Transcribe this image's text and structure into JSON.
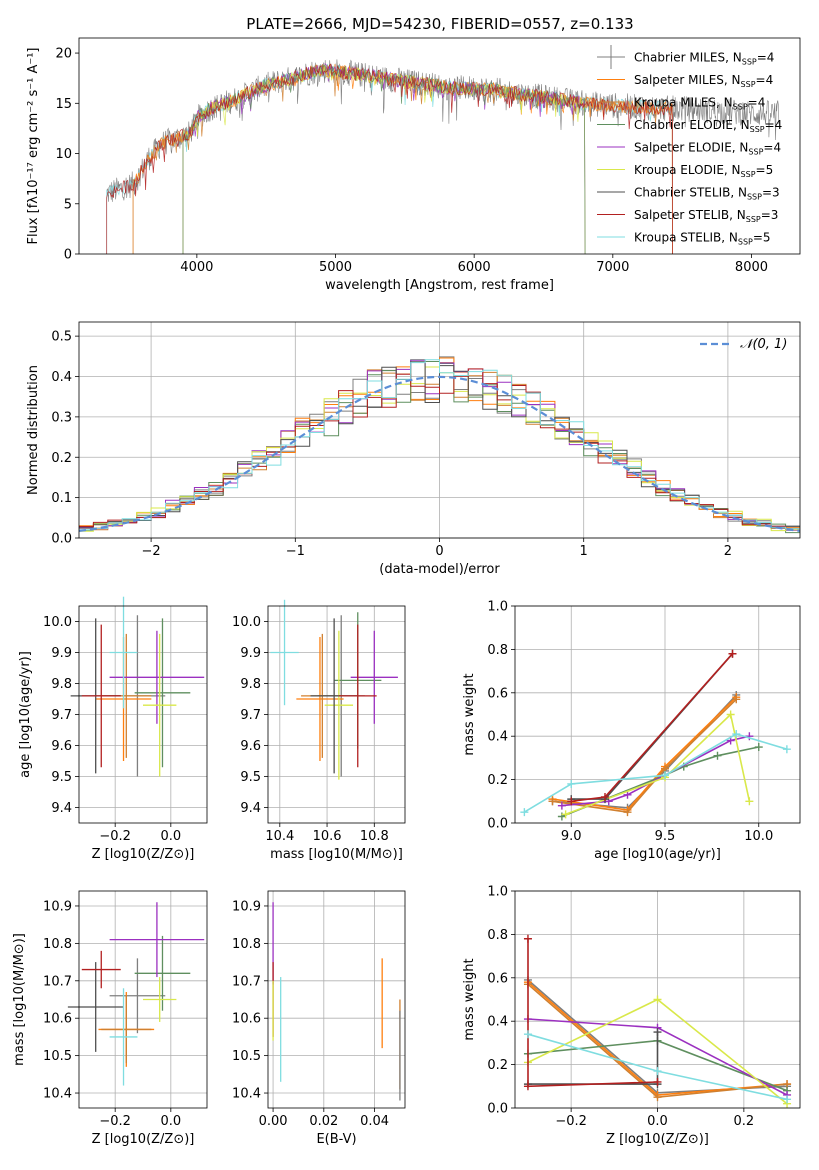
{
  "figure_title": "PLATE=2666, MJD=54230, FIBERID=0557, z=0.133",
  "colors": {
    "Chabrier MILES": "#7f7f7f",
    "Salpeter MILES": "#ff7f0e",
    "Kroupa MILES": "#d08030",
    "Chabrier ELODIE": "#5f8f5f",
    "Salpeter ELODIE": "#9b30c0",
    "Kroupa ELODIE": "#d9e84a",
    "Chabrier STELIB": "#4f4f4f",
    "Salpeter STELIB": "#b22020",
    "Kroupa STELIB": "#7fdde0",
    "gauss": "#5b8ed6"
  },
  "chart_data": [
    {
      "type": "line",
      "panel": "spectrum",
      "xlabel": "wavelength [Angstrom, rest frame]",
      "ylabel": "Flux [fλ10⁻¹⁷ erg cm⁻² s⁻¹ A⁻¹]",
      "xlim": [
        3150,
        8350
      ],
      "ylim": [
        0,
        21.5
      ],
      "xticks": [
        4000,
        5000,
        6000,
        7000,
        8000
      ],
      "yticks": [
        0,
        5,
        10,
        15,
        20
      ],
      "grid": false,
      "legend_position": "right",
      "legend": [
        {
          "name": "Chabrier MILES, N_SSP=4",
          "color": "#7f7f7f"
        },
        {
          "name": "Salpeter MILES, N_SSP=4",
          "color": "#ff7f0e"
        },
        {
          "name": "Kroupa MILES, N_SSP=4",
          "color": "#d08030"
        },
        {
          "name": "Chabrier ELODIE, N_SSP=4",
          "color": "#5f8f5f"
        },
        {
          "name": "Salpeter ELODIE, N_SSP=4",
          "color": "#9b30c0"
        },
        {
          "name": "Kroupa ELODIE, N_SSP=5",
          "color": "#d9e84a"
        },
        {
          "name": "Chabrier STELIB, N_SSP=3",
          "color": "#4f4f4f"
        },
        {
          "name": "Salpeter STELIB, N_SSP=3",
          "color": "#b22020"
        },
        {
          "name": "Kroupa STELIB, N_SSP=5",
          "color": "#7fdde0"
        }
      ],
      "continuum": [
        [
          3350,
          6.0
        ],
        [
          3450,
          6.5
        ],
        [
          3550,
          7.0
        ],
        [
          3650,
          9.5
        ],
        [
          3750,
          11.0
        ],
        [
          3850,
          11.5
        ],
        [
          3950,
          12.0
        ],
        [
          4000,
          13.5
        ],
        [
          4100,
          14.5
        ],
        [
          4200,
          15.0
        ],
        [
          4300,
          15.5
        ],
        [
          4400,
          16.2
        ],
        [
          4500,
          16.8
        ],
        [
          4600,
          17.2
        ],
        [
          4700,
          17.5
        ],
        [
          4800,
          18.0
        ],
        [
          4900,
          18.3
        ],
        [
          5000,
          18.2
        ],
        [
          5100,
          18.0
        ],
        [
          5200,
          17.8
        ],
        [
          5300,
          17.6
        ],
        [
          5400,
          17.4
        ],
        [
          5500,
          17.2
        ],
        [
          5600,
          17.0
        ],
        [
          5700,
          16.8
        ],
        [
          5800,
          16.6
        ],
        [
          5900,
          16.5
        ],
        [
          6000,
          16.5
        ],
        [
          6100,
          16.4
        ],
        [
          6200,
          16.2
        ],
        [
          6300,
          16.0
        ],
        [
          6400,
          15.8
        ],
        [
          6500,
          15.6
        ],
        [
          6600,
          15.4
        ],
        [
          6700,
          15.2
        ],
        [
          6800,
          15.0
        ],
        [
          6900,
          14.9
        ],
        [
          7000,
          14.8
        ],
        [
          7200,
          14.6
        ],
        [
          7400,
          14.5
        ],
        [
          7600,
          14.4
        ],
        [
          7800,
          14.2
        ],
        [
          8000,
          14.0
        ],
        [
          8200,
          14.0
        ]
      ],
      "model_start_wavelengths": {
        "MILES": 3540,
        "ELODIE": 3900,
        "STELIB": 3350
      },
      "model_end_wavelengths": {
        "ELODIE": 6800,
        "MILES_STELIB": 7430,
        "data": 8200
      }
    },
    {
      "type": "histogram",
      "panel": "residuals",
      "xlabel": "(data-model)/error",
      "ylabel": "Normed distribution",
      "xlim": [
        -2.5,
        2.5
      ],
      "ylim": [
        0,
        0.535
      ],
      "xticks": [
        -2,
        -1,
        0,
        1,
        2
      ],
      "yticks": [
        0.0,
        0.1,
        0.2,
        0.3,
        0.4,
        0.5
      ],
      "grid": true,
      "bin_width": 0.1,
      "legend": [
        {
          "name": "𝒩(0, 1)",
          "color": "#5b8ed6",
          "style": "dashed"
        }
      ],
      "legend_position": "top-right"
    },
    {
      "type": "errorbar",
      "panel": "Z-age",
      "xlabel": "Z [log10(Z/Z⊙)]",
      "ylabel": "age  [log10(age/yr)]",
      "xlim": [
        -0.33,
        0.13
      ],
      "ylim": [
        9.35,
        10.05
      ],
      "xticks": [
        -0.2,
        0.0
      ],
      "yticks": [
        9.4,
        9.5,
        9.6,
        9.7,
        9.8,
        9.9,
        10.0
      ],
      "grid": true,
      "points": [
        {
          "model": "Chabrier MILES",
          "x": -0.12,
          "xerr": 0.1,
          "y": 9.76,
          "yerr": 0.26
        },
        {
          "model": "Salpeter MILES",
          "x": -0.17,
          "xerr": 0.1,
          "y": 9.75,
          "yerr": 0.2
        },
        {
          "model": "Kroupa MILES",
          "x": -0.16,
          "xerr": 0.09,
          "y": 9.76,
          "yerr": 0.2
        },
        {
          "model": "Chabrier ELODIE",
          "x": -0.03,
          "xerr": 0.1,
          "y": 9.77,
          "yerr": 0.24
        },
        {
          "model": "Salpeter ELODIE",
          "x": -0.05,
          "xerr": 0.17,
          "y": 9.82,
          "yerr": 0.15
        },
        {
          "model": "Kroupa ELODIE",
          "x": -0.04,
          "xerr": 0.06,
          "y": 9.73,
          "yerr": 0.23
        },
        {
          "model": "Chabrier STELIB",
          "x": -0.27,
          "xerr": 0.09,
          "y": 9.76,
          "yerr": 0.25
        },
        {
          "model": "Salpeter STELIB",
          "x": -0.25,
          "xerr": 0.07,
          "y": 9.76,
          "yerr": 0.23
        },
        {
          "model": "Kroupa STELIB",
          "x": -0.17,
          "xerr": 0.05,
          "y": 9.9,
          "yerr": 0.18
        }
      ]
    },
    {
      "type": "errorbar",
      "panel": "mass-age",
      "xlabel": "mass [log10(M/M⊙)]",
      "ylabel": "",
      "xlim": [
        10.35,
        10.93
      ],
      "ylim": [
        9.35,
        10.05
      ],
      "xticks": [
        10.4,
        10.6,
        10.8
      ],
      "yticks": [
        9.4,
        9.5,
        9.6,
        9.7,
        9.8,
        9.9,
        10.0
      ],
      "grid": true,
      "points": [
        {
          "model": "Chabrier MILES",
          "x": 10.66,
          "xerr": 0.1,
          "y": 9.76,
          "yerr": 0.26
        },
        {
          "model": "Salpeter MILES",
          "x": 10.57,
          "xerr": 0.1,
          "y": 9.75,
          "yerr": 0.2
        },
        {
          "model": "Kroupa MILES",
          "x": 10.58,
          "xerr": 0.09,
          "y": 9.76,
          "yerr": 0.2
        },
        {
          "model": "Chabrier ELODIE",
          "x": 10.73,
          "xerr": 0.1,
          "y": 9.81,
          "yerr": 0.22
        },
        {
          "model": "Salpeter ELODIE",
          "x": 10.8,
          "xerr": 0.1,
          "y": 9.82,
          "yerr": 0.15
        },
        {
          "model": "Kroupa ELODIE",
          "x": 10.65,
          "xerr": 0.06,
          "y": 9.73,
          "yerr": 0.24
        },
        {
          "model": "Chabrier STELIB",
          "x": 10.63,
          "xerr": 0.1,
          "y": 9.76,
          "yerr": 0.25
        },
        {
          "model": "Salpeter STELIB",
          "x": 10.73,
          "xerr": 0.08,
          "y": 9.76,
          "yerr": 0.23
        },
        {
          "model": "Kroupa STELIB",
          "x": 10.42,
          "xerr": 0.06,
          "y": 9.9,
          "yerr": 0.17
        }
      ]
    },
    {
      "type": "line",
      "panel": "age-weight",
      "xlabel": "age  [log10(age/yr)]",
      "ylabel": "mass weight",
      "xlim": [
        8.7,
        10.22
      ],
      "ylim": [
        0,
        1.0
      ],
      "xticks": [
        9.0,
        9.5,
        10.0
      ],
      "yticks": [
        0.0,
        0.2,
        0.4,
        0.6,
        0.8,
        1.0
      ],
      "grid": true,
      "series": [
        {
          "model": "Chabrier MILES",
          "x": [
            8.9,
            9.3,
            9.5,
            9.88
          ],
          "y": [
            0.1,
            0.07,
            0.24,
            0.59
          ]
        },
        {
          "model": "Salpeter MILES",
          "x": [
            8.9,
            9.3,
            9.5,
            9.88
          ],
          "y": [
            0.11,
            0.06,
            0.26,
            0.58
          ]
        },
        {
          "model": "Kroupa MILES",
          "x": [
            8.9,
            9.3,
            9.5,
            9.88
          ],
          "y": [
            0.1,
            0.05,
            0.25,
            0.57
          ]
        },
        {
          "model": "Chabrier ELODIE",
          "x": [
            8.95,
            9.5,
            9.6,
            9.78,
            10.0
          ],
          "y": [
            0.03,
            0.22,
            0.26,
            0.31,
            0.35
          ]
        },
        {
          "model": "Salpeter ELODIE",
          "x": [
            8.95,
            9.2,
            9.3,
            9.85,
            9.95
          ],
          "y": [
            0.08,
            0.1,
            0.13,
            0.38,
            0.4
          ]
        },
        {
          "model": "Kroupa ELODIE",
          "x": [
            8.97,
            9.5,
            9.85,
            9.95
          ],
          "y": [
            0.04,
            0.21,
            0.5,
            0.1
          ]
        },
        {
          "model": "Chabrier STELIB",
          "x": [
            9.0,
            9.18,
            9.86
          ],
          "y": [
            0.11,
            0.11,
            0.78
          ]
        },
        {
          "model": "Salpeter STELIB",
          "x": [
            9.0,
            9.18,
            9.86
          ],
          "y": [
            0.1,
            0.12,
            0.78
          ]
        },
        {
          "model": "Kroupa STELIB",
          "x": [
            8.75,
            9.0,
            9.5,
            9.88,
            10.15
          ],
          "y": [
            0.05,
            0.18,
            0.22,
            0.41,
            0.34
          ]
        }
      ]
    },
    {
      "type": "errorbar",
      "panel": "Z-mass",
      "xlabel": "Z [log10(Z/Z⊙)]",
      "ylabel": "mass [log10(M/M⊙)]",
      "xlim": [
        -0.33,
        0.13
      ],
      "ylim": [
        10.36,
        10.94
      ],
      "xticks": [
        -0.2,
        0.0
      ],
      "yticks": [
        10.4,
        10.5,
        10.6,
        10.7,
        10.8,
        10.9
      ],
      "grid": true,
      "points": [
        {
          "model": "Chabrier MILES",
          "x": -0.12,
          "xerr": 0.1,
          "y": 10.66,
          "yerr": 0.1
        },
        {
          "model": "Salpeter MILES",
          "x": -0.16,
          "xerr": 0.1,
          "y": 10.57,
          "yerr": 0.1
        },
        {
          "model": "Kroupa MILES",
          "x": -0.16,
          "xerr": 0.09,
          "y": 10.57,
          "yerr": 0.09
        },
        {
          "model": "Chabrier ELODIE",
          "x": -0.03,
          "xerr": 0.1,
          "y": 10.72,
          "yerr": 0.1
        },
        {
          "model": "Salpeter ELODIE",
          "x": -0.05,
          "xerr": 0.17,
          "y": 10.81,
          "yerr": 0.1
        },
        {
          "model": "Kroupa ELODIE",
          "x": -0.04,
          "xerr": 0.06,
          "y": 10.65,
          "yerr": 0.06
        },
        {
          "model": "Chabrier STELIB",
          "x": -0.27,
          "xerr": 0.1,
          "y": 10.63,
          "yerr": 0.12
        },
        {
          "model": "Salpeter STELIB",
          "x": -0.25,
          "xerr": 0.07,
          "y": 10.73,
          "yerr": 0.05
        },
        {
          "model": "Kroupa STELIB",
          "x": -0.17,
          "xerr": 0.05,
          "y": 10.55,
          "yerr": 0.13
        }
      ]
    },
    {
      "type": "errorbar",
      "panel": "EBV-mass",
      "xlabel": "E(B-V)",
      "ylabel": "",
      "xlim": [
        -0.002,
        0.052
      ],
      "ylim": [
        10.36,
        10.94
      ],
      "xticks": [
        0.0,
        0.02,
        0.04
      ],
      "yticks": [
        10.4,
        10.5,
        10.6,
        10.7,
        10.8,
        10.9
      ],
      "grid": true,
      "points": [
        {
          "model": "Salpeter ELODIE",
          "x": 0.0,
          "y": 10.8,
          "yerr": 0.11
        },
        {
          "model": "Salpeter STELIB",
          "x": 0.0,
          "y": 10.65,
          "yerr": 0.1
        },
        {
          "model": "Kroupa ELODIE",
          "x": 0.0,
          "y": 10.62,
          "yerr": 0.08
        },
        {
          "model": "Kroupa STELIB",
          "x": 0.003,
          "y": 10.57,
          "yerr": 0.14
        },
        {
          "model": "Salpeter MILES",
          "x": 0.043,
          "y": 10.64,
          "yerr": 0.12
        },
        {
          "model": "Kroupa MILES",
          "x": 0.05,
          "y": 10.53,
          "yerr": 0.12
        },
        {
          "model": "Chabrier MILES",
          "x": 0.05,
          "y": 10.5,
          "yerr": 0.12
        }
      ]
    },
    {
      "type": "line",
      "panel": "Z-weight",
      "xlabel": "Z [log10(Z/Z⊙)]",
      "ylabel": "mass weight",
      "xlim": [
        -0.33,
        0.33
      ],
      "ylim": [
        0,
        1.0
      ],
      "xticks": [
        -0.2,
        0.0,
        0.2
      ],
      "yticks": [
        0.0,
        0.2,
        0.4,
        0.6,
        0.8,
        1.0
      ],
      "grid": true,
      "series": [
        {
          "model": "Chabrier MILES",
          "x": [
            -0.3,
            0.0,
            0.3
          ],
          "y": [
            0.59,
            0.07,
            0.1
          ]
        },
        {
          "model": "Salpeter MILES",
          "x": [
            -0.3,
            0.0,
            0.3
          ],
          "y": [
            0.58,
            0.06,
            0.11
          ]
        },
        {
          "model": "Kroupa MILES",
          "x": [
            -0.3,
            0.0,
            0.3
          ],
          "y": [
            0.57,
            0.05,
            0.11
          ]
        },
        {
          "model": "Chabrier ELODIE",
          "x": [
            -0.3,
            0.0,
            0.3
          ],
          "y": [
            0.25,
            0.31,
            0.08
          ]
        },
        {
          "model": "Salpeter ELODIE",
          "x": [
            -0.3,
            0.0,
            0.3
          ],
          "y": [
            0.41,
            0.37,
            0.06
          ]
        },
        {
          "model": "Kroupa ELODIE",
          "x": [
            -0.3,
            0.0,
            0.3
          ],
          "y": [
            0.21,
            0.5,
            0.02
          ]
        },
        {
          "model": "Chabrier STELIB",
          "x": [
            -0.3,
            0.0,
            0.0
          ],
          "y": [
            0.11,
            0.11,
            0.35
          ]
        },
        {
          "model": "Salpeter STELIB",
          "x": [
            -0.3,
            -0.3,
            0.0
          ],
          "y": [
            0.78,
            0.1,
            0.12
          ]
        },
        {
          "model": "Kroupa STELIB",
          "x": [
            -0.3,
            0.0,
            0.3
          ],
          "y": [
            0.34,
            0.17,
            0.04
          ]
        }
      ]
    }
  ]
}
